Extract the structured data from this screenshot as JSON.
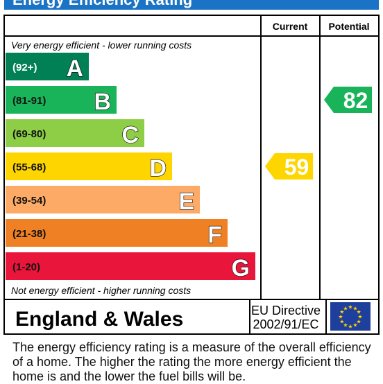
{
  "title": "Energy Efficiency Rating",
  "headers": {
    "current": "Current",
    "potential": "Potential"
  },
  "top_note": "Very energy efficient - lower running costs",
  "bottom_note": "Not energy efficient - higher running costs",
  "footer": {
    "region": "England & Wales",
    "directive_line1": "EU Directive",
    "directive_line2": "2002/91/EC",
    "flag_colors": {
      "blue": "#1f3f9c",
      "star": "#ffd600"
    }
  },
  "description": "The energy efficiency rating is a measure of the overall efficiency of a home.  The higher the rating the more energy efficient the home is and the lower the fuel bills will be.",
  "chart_data": {
    "type": "bar",
    "bands": [
      {
        "letter": "A",
        "range": "(92+)",
        "color": "#008054"
      },
      {
        "letter": "B",
        "range": "(81-91)",
        "color": "#19b459"
      },
      {
        "letter": "C",
        "range": "(69-80)",
        "color": "#8dce46"
      },
      {
        "letter": "D",
        "range": "(55-68)",
        "color": "#ffd500"
      },
      {
        "letter": "E",
        "range": "(39-54)",
        "color": "#fcaa65"
      },
      {
        "letter": "F",
        "range": "(21-38)",
        "color": "#ef8023"
      },
      {
        "letter": "G",
        "range": "(1-20)",
        "color": "#e9153b"
      }
    ],
    "current": {
      "value": 59,
      "band": "D",
      "color": "#ffd500"
    },
    "potential": {
      "value": 82,
      "band": "B",
      "color": "#19b459"
    }
  }
}
